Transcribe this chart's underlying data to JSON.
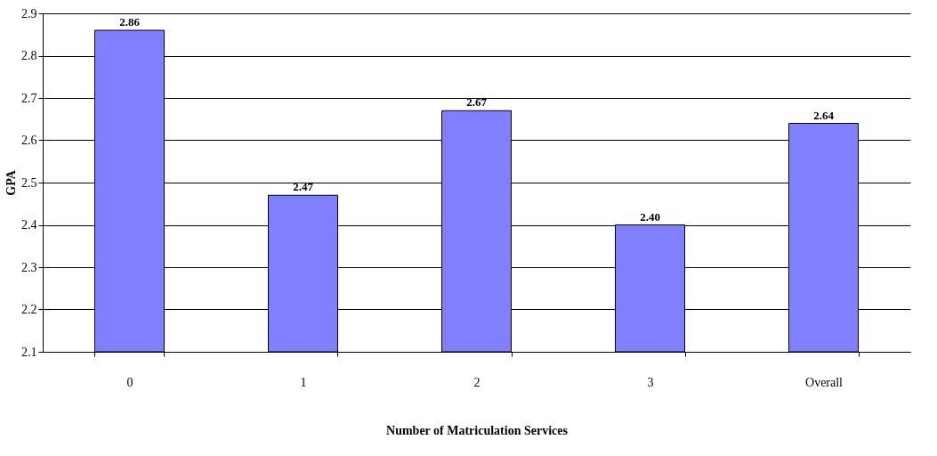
{
  "chart_data": {
    "type": "bar",
    "categories": [
      "0",
      "1",
      "2",
      "3",
      "Overall"
    ],
    "values": [
      2.86,
      2.47,
      2.67,
      2.4,
      2.64
    ],
    "value_labels": [
      "2.86",
      "2.47",
      "2.67",
      "2.40",
      "2.64"
    ],
    "color": "#8080ff",
    "xlabel": "Number of Matriculation Services",
    "ylabel": "GPA",
    "ylim": [
      2.1,
      2.9
    ],
    "yticks": [
      2.1,
      2.2,
      2.3,
      2.4,
      2.5,
      2.6,
      2.7,
      2.8,
      2.9
    ],
    "grid": "y"
  }
}
